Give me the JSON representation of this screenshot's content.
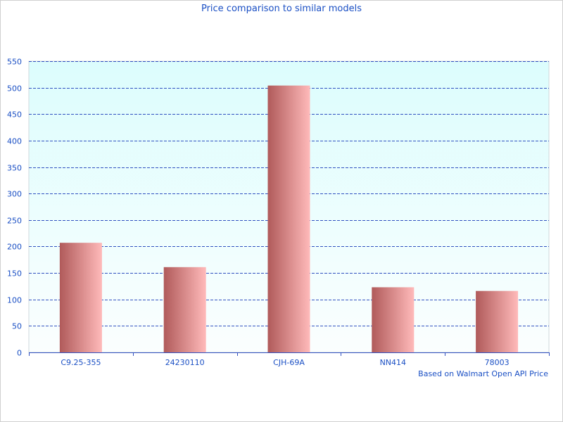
{
  "chart_data": {
    "type": "bar",
    "title": "Price comparison to similar models",
    "categories": [
      "C9.25-355",
      "24230110",
      "CJH-69A",
      "NN414",
      "78003"
    ],
    "values": [
      207,
      161,
      504,
      123,
      116
    ],
    "ylim": [
      0,
      550
    ],
    "yticks": [
      0,
      50,
      100,
      150,
      200,
      250,
      300,
      350,
      400,
      450,
      500,
      550
    ],
    "grid": true,
    "annotation": "Based on Walmart Open API Price",
    "colors": {
      "bar_dark": "#b05a5a",
      "bar_light": "#ffbaba",
      "plot_top": "#dcfdfd",
      "plot_bottom": "#fbfefe",
      "grid": "#3050c0",
      "text": "#1a4fc4"
    }
  }
}
